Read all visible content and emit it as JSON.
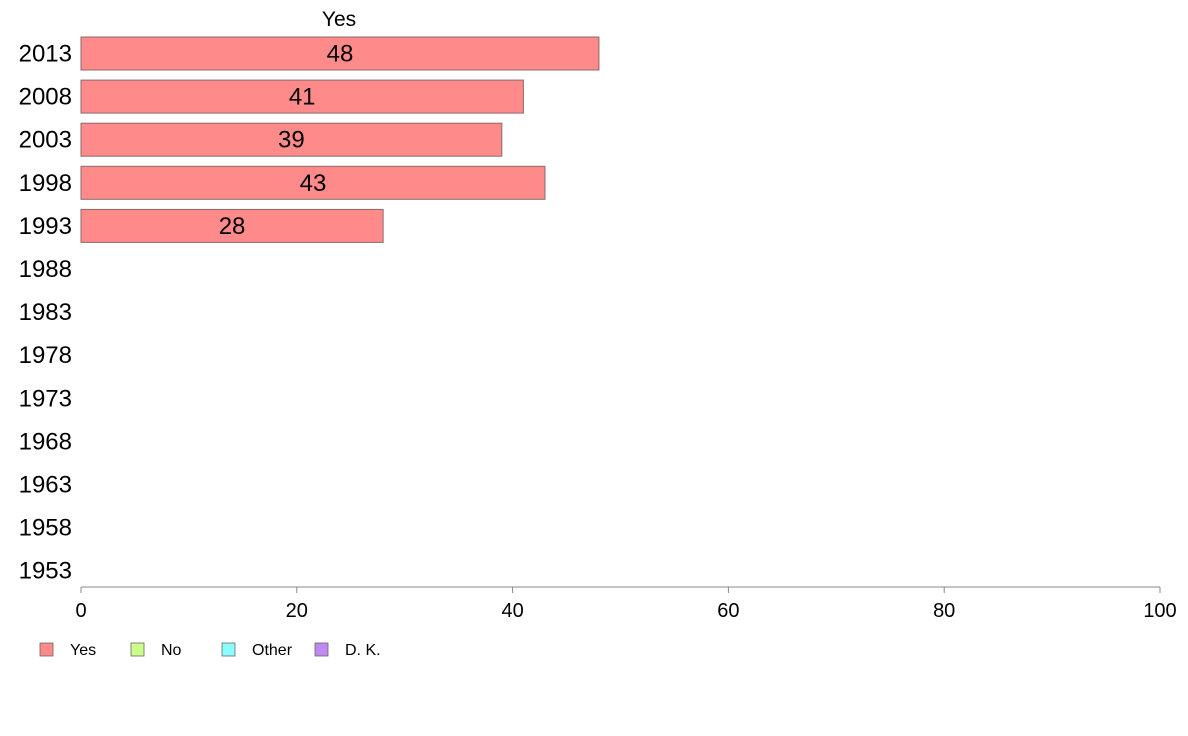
{
  "chart_data": {
    "type": "bar",
    "orientation": "horizontal",
    "header": "Yes",
    "categories": [
      "2013",
      "2008",
      "2003",
      "1998",
      "1993",
      "1988",
      "1983",
      "1978",
      "1973",
      "1968",
      "1963",
      "1958",
      "1953"
    ],
    "series": [
      {
        "name": "Yes",
        "values": [
          48,
          41,
          39,
          43,
          28,
          null,
          null,
          null,
          null,
          null,
          null,
          null,
          null
        ]
      }
    ],
    "xlim": [
      0,
      100
    ],
    "xticks": [
      "0",
      "20",
      "40",
      "60",
      "80",
      "100"
    ],
    "grid": false,
    "legend": {
      "placement": "bottom-left",
      "items": [
        {
          "label": "Yes",
          "color": "#ff8a8a"
        },
        {
          "label": "No",
          "color": "#ccff8a"
        },
        {
          "label": "Other",
          "color": "#8affff"
        },
        {
          "label": "D. K.",
          "color": "#c08af0"
        }
      ]
    },
    "colors": {
      "bar": "#ff8a8a",
      "bar_stroke": "#8a6a6a",
      "axis": "#888888"
    }
  }
}
